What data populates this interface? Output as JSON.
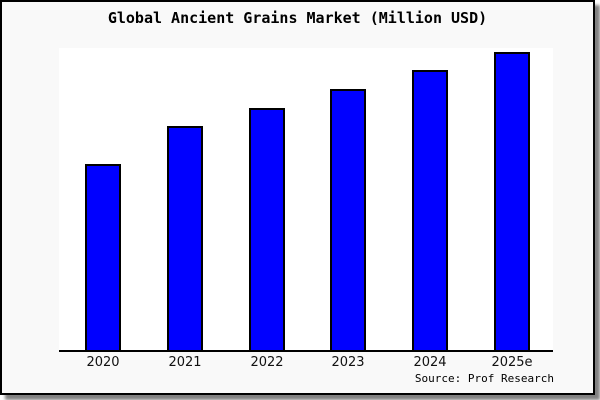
{
  "chart_data": {
    "type": "bar",
    "title": "Global Ancient Grains Market (Million USD)",
    "categories": [
      "2020",
      "2021",
      "2022",
      "2023",
      "2024",
      "2025e"
    ],
    "values": [
      62.5,
      75.0,
      81.3,
      87.5,
      93.8,
      100.0
    ],
    "value_scale": "relative (no y-axis tick labels shown in chart; values normalized to 2025e = 100)",
    "xlabel": "",
    "ylabel": "",
    "ylim": [
      0,
      101.3
    ],
    "grid": false,
    "y_axis_visible": false,
    "legend": "none",
    "bar_color": "#0000ff",
    "bar_edge_color": "#000000"
  },
  "source_label": "Source: Prof Research",
  "colors": {
    "page_background": "#f9f9f9",
    "plot_background": "#ffffff",
    "frame_border": "#000000",
    "shadow": "#3c3c3c",
    "text": "#000000"
  }
}
